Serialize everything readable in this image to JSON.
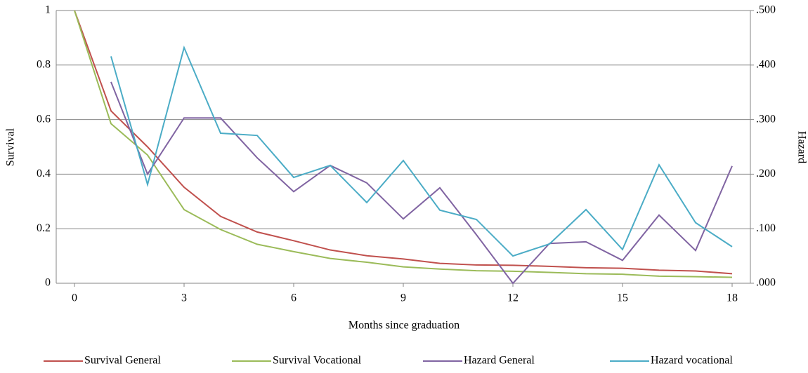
{
  "chart_data": {
    "type": "line",
    "x_label": "Months since graduation",
    "y_label": "Survival",
    "y2_label": "Hazard",
    "x": [
      0,
      1,
      2,
      3,
      4,
      5,
      6,
      7,
      8,
      9,
      10,
      11,
      12,
      13,
      14,
      15,
      16,
      17,
      18
    ],
    "xlim": [
      -0.5,
      18.5
    ],
    "xticks": [
      0,
      3,
      6,
      9,
      12,
      15,
      18
    ],
    "ylim": [
      0,
      1
    ],
    "yticks": [
      0,
      0.2,
      0.4,
      0.6,
      0.8,
      1
    ],
    "y2lim": [
      0,
      0.5
    ],
    "y2ticks": [
      {
        "value": 0,
        "label": ".000"
      },
      {
        "value": 0.1,
        "label": ".100"
      },
      {
        "value": 0.2,
        "label": ".200"
      },
      {
        "value": 0.3,
        "label": ".300"
      },
      {
        "value": 0.4,
        "label": ".400"
      },
      {
        "value": 0.5,
        "label": ".500"
      }
    ],
    "grid": true,
    "legend": "bottom",
    "series": [
      {
        "name": "Survival General",
        "color": "#c0504d",
        "values": [
          1,
          0.632,
          0.5,
          0.352,
          0.245,
          0.188,
          0.156,
          0.122,
          0.101,
          0.089,
          0.073,
          0.067,
          0.066,
          0.062,
          0.057,
          0.055,
          0.048,
          0.045,
          0.035
        ]
      },
      {
        "name": "Survival Vocational",
        "color": "#9bbb59",
        "values": [
          1,
          0.585,
          0.47,
          0.27,
          0.197,
          0.143,
          0.116,
          0.091,
          0.077,
          0.06,
          0.052,
          0.046,
          0.044,
          0.04,
          0.035,
          0.033,
          0.026,
          0.024,
          0.022
        ]
      },
      {
        "name": "Hazard General",
        "color": "#8064a2",
        "axis": "y2",
        "values": [
          null,
          0.369,
          0.2,
          0.303,
          0.303,
          0.23,
          0.168,
          0.216,
          0.184,
          0.118,
          0.175,
          0.089,
          0,
          0.073,
          0.076,
          0.042,
          0.125,
          0.06,
          0.215
        ]
      },
      {
        "name": "Hazard vocational",
        "color": "#4bacc6",
        "axis": "y2",
        "values": [
          null,
          0.416,
          0.181,
          0.432,
          0.275,
          0.271,
          0.194,
          0.216,
          0.148,
          0.225,
          0.134,
          0.117,
          0.05,
          0.072,
          0.135,
          0.062,
          0.217,
          0.111,
          0.067
        ]
      }
    ]
  }
}
